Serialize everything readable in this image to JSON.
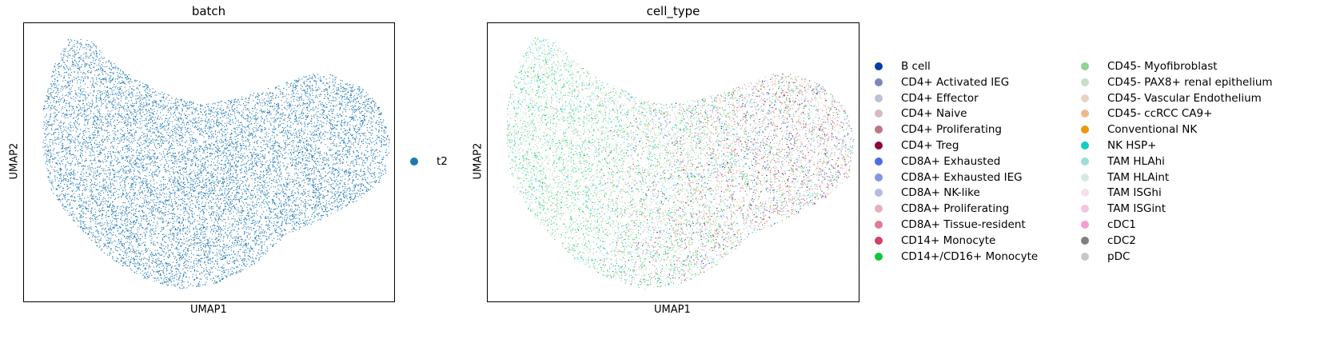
{
  "colors": {
    "batch_t2": "#1f77b4"
  },
  "chart_data": [
    {
      "type": "scatter",
      "title": "batch",
      "xlabel": "UMAP1",
      "ylabel": "UMAP2",
      "grid": false,
      "legend_placement": "right",
      "legend": [
        {
          "label": "t2",
          "color": "#1f77b4"
        }
      ],
      "series": [
        {
          "name": "t2",
          "color": "#1f77b4"
        }
      ]
    },
    {
      "type": "scatter",
      "title": "cell_type",
      "xlabel": "UMAP1",
      "ylabel": "UMAP2",
      "grid": false,
      "legend_placement": "right",
      "legend": [
        {
          "label": "B cell",
          "color": "#023fa5"
        },
        {
          "label": "CD4+ Activated IEG",
          "color": "#7d87b9"
        },
        {
          "label": "CD4+ Effector",
          "color": "#bec1d4"
        },
        {
          "label": "CD4+ Naive",
          "color": "#d6bcc0"
        },
        {
          "label": "CD4+ Proliferating",
          "color": "#bb7784"
        },
        {
          "label": "CD4+ Treg",
          "color": "#8e063b"
        },
        {
          "label": "CD8A+ Exhausted",
          "color": "#4a6fe3"
        },
        {
          "label": "CD8A+ Exhausted IEG",
          "color": "#8595e1"
        },
        {
          "label": "CD8A+ NK-like",
          "color": "#b5bbe3"
        },
        {
          "label": "CD8A+ Proliferating",
          "color": "#e6afb9"
        },
        {
          "label": "CD8A+ Tissue-resident",
          "color": "#e07b91"
        },
        {
          "label": "CD14+ Monocyte",
          "color": "#d33f6a"
        },
        {
          "label": "CD14+/CD16+ Monocyte",
          "color": "#11c638"
        },
        {
          "label": "CD45- Myofibroblast",
          "color": "#8dd593"
        },
        {
          "label": "CD45- PAX8+ renal epithelium",
          "color": "#c6dec7"
        },
        {
          "label": "CD45- Vascular Endothelium",
          "color": "#ead3c6"
        },
        {
          "label": "CD45- ccRCC CA9+",
          "color": "#f0b98d"
        },
        {
          "label": "Conventional NK",
          "color": "#ef9708"
        },
        {
          "label": "NK HSP+",
          "color": "#0fcfc0"
        },
        {
          "label": "TAM HLAhi",
          "color": "#9cded6"
        },
        {
          "label": "TAM HLAint",
          "color": "#d5eae7"
        },
        {
          "label": "TAM ISGhi",
          "color": "#f3e1eb"
        },
        {
          "label": "TAM ISGint",
          "color": "#f6c4e1"
        },
        {
          "label": "cDC1",
          "color": "#f79cd4"
        },
        {
          "label": "cDC2",
          "color": "#7f7f7f"
        },
        {
          "label": "pDC",
          "color": "#c7c7c7"
        }
      ]
    }
  ]
}
